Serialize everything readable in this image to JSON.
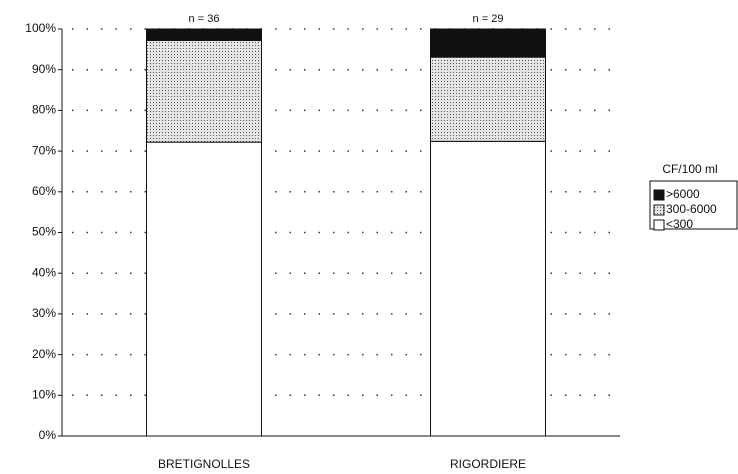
{
  "chart_data": {
    "type": "stacked_bar",
    "categories": [
      "BRETIGNOLLES",
      "RIGORDIERE"
    ],
    "annotations": [
      "n = 36",
      "n = 29"
    ],
    "legend_title": "CF/100 ml",
    "series": [
      {
        "name": "<300",
        "color": "#ffffff",
        "values": [
          72.2,
          72.4
        ]
      },
      {
        "name": "300-6000",
        "color": "#c4c4c4",
        "values": [
          25.0,
          20.7
        ]
      },
      {
        "name": ">6000",
        "color": "#111111",
        "values": [
          2.8,
          6.9
        ]
      }
    ],
    "ylim": [
      0,
      100
    ],
    "yticks": [
      {
        "value": 0,
        "label": "0%"
      },
      {
        "value": 10,
        "label": "10%"
      },
      {
        "value": 20,
        "label": "20%"
      },
      {
        "value": 30,
        "label": "30%"
      },
      {
        "value": 40,
        "label": "40%"
      },
      {
        "value": 50,
        "label": "50%"
      },
      {
        "value": 60,
        "label": "60%"
      },
      {
        "value": 70,
        "label": "70%"
      },
      {
        "value": 80,
        "label": "80%"
      },
      {
        "value": 90,
        "label": "90%"
      },
      {
        "value": 100,
        "label": "100%"
      }
    ],
    "grid": true
  }
}
